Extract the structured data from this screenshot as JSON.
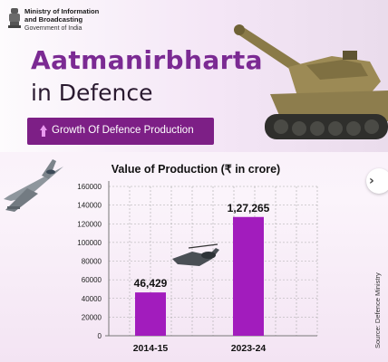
{
  "header": {
    "ministry_line1": "Ministry of Information",
    "ministry_line2": "and Broadcasting",
    "ministry_sub": "Government of India"
  },
  "hero": {
    "title": "Aatmanirbharta",
    "subtitle": "in Defence",
    "pill_text": "Growth Of Defence Production"
  },
  "nav": {
    "next_glyph": "›"
  },
  "source": "Source: Defence Ministry",
  "colors": {
    "accent": "#7b2a93",
    "bar": "#a21cbd",
    "pill": "#7d1f86",
    "grid": "#a9a9a9"
  },
  "icons": [
    "national-emblem-icon",
    "tank-image",
    "fighter-jet-image",
    "helicopter-image",
    "arrow-up-icon",
    "chevron-right-icon"
  ],
  "chart_data": {
    "type": "bar",
    "title": "Value of Production (₹ in crore)",
    "categories": [
      "2014-15",
      "2023-24"
    ],
    "values": [
      46429,
      127265
    ],
    "data_labels": [
      "46,429",
      "1,27,265"
    ],
    "ylim": [
      0,
      160000
    ],
    "yticks": [
      0,
      20000,
      40000,
      60000,
      80000,
      100000,
      120000,
      140000,
      160000
    ],
    "ytick_labels": [
      "0",
      "20000",
      "40000",
      "60000",
      "80000",
      "100000",
      "120000",
      "140000",
      "160000"
    ],
    "xlabel": "",
    "ylabel": "",
    "grid": true
  }
}
